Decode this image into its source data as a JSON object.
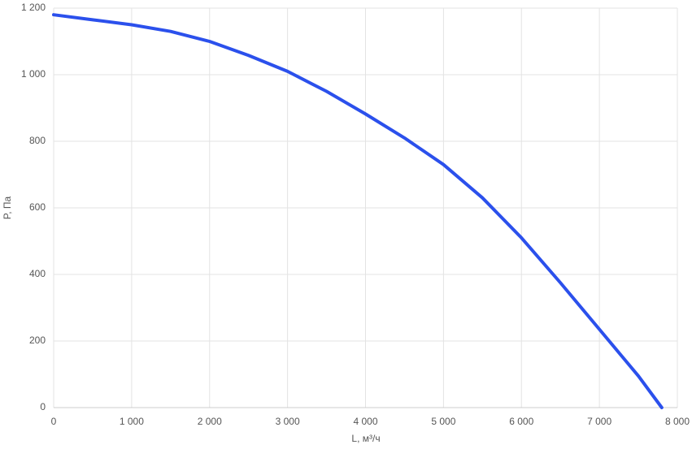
{
  "chart_data": {
    "type": "line",
    "x_label": "L, м³/ч",
    "y_label": "P, Па",
    "series": [
      {
        "name": "P",
        "color": "#2b50ec",
        "x": [
          0,
          500,
          1000,
          1500,
          2000,
          2500,
          3000,
          3500,
          4000,
          4500,
          5000,
          5500,
          6000,
          6500,
          7000,
          7500,
          7800
        ],
        "values": [
          1180,
          1165,
          1150,
          1130,
          1100,
          1058,
          1010,
          950,
          882,
          810,
          730,
          630,
          510,
          375,
          235,
          95,
          0
        ]
      }
    ],
    "xlim": [
      0,
      8000
    ],
    "xticks": [
      0,
      {
        "value": 1000,
        "label": "1 000"
      },
      {
        "value": 2000,
        "label": "2 000"
      },
      {
        "value": 3000,
        "label": "3 000"
      },
      {
        "value": 4000,
        "label": "4 000"
      },
      {
        "value": 5000,
        "label": "5 000"
      },
      {
        "value": 6000,
        "label": "6 000"
      },
      {
        "value": 7000,
        "label": "7 000"
      },
      {
        "value": 8000,
        "label": "8 000"
      }
    ],
    "ylim": [
      0,
      1200
    ],
    "yticks": [
      0,
      200,
      400,
      600,
      800,
      {
        "value": 1000,
        "label": "1 000"
      },
      {
        "value": 1200,
        "label": "1 200"
      }
    ],
    "grid": true
  }
}
